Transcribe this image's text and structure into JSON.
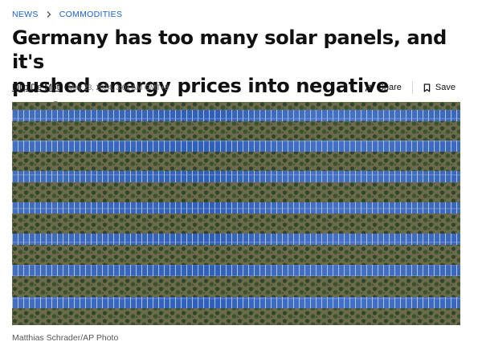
{
  "breadcrumb": {
    "items": [
      "NEWS",
      "COMMODITIES"
    ]
  },
  "article": {
    "headline_line1": "Germany has too many solar panels, and it's",
    "headline_line2": "pushed energy prices into negative territory",
    "author": "Filip De Mott",
    "date": "May 23, 2024, 3:01 AM GMT+8"
  },
  "actions": {
    "share_label": "Share",
    "save_label": "Save"
  },
  "image": {
    "caption": "Matthias Schrader/AP Photo"
  },
  "colors": {
    "link": "#1a5fd0",
    "panel": "#2f5fb8",
    "ground": "#6a6a4a",
    "vegetation": "#344a2c"
  }
}
